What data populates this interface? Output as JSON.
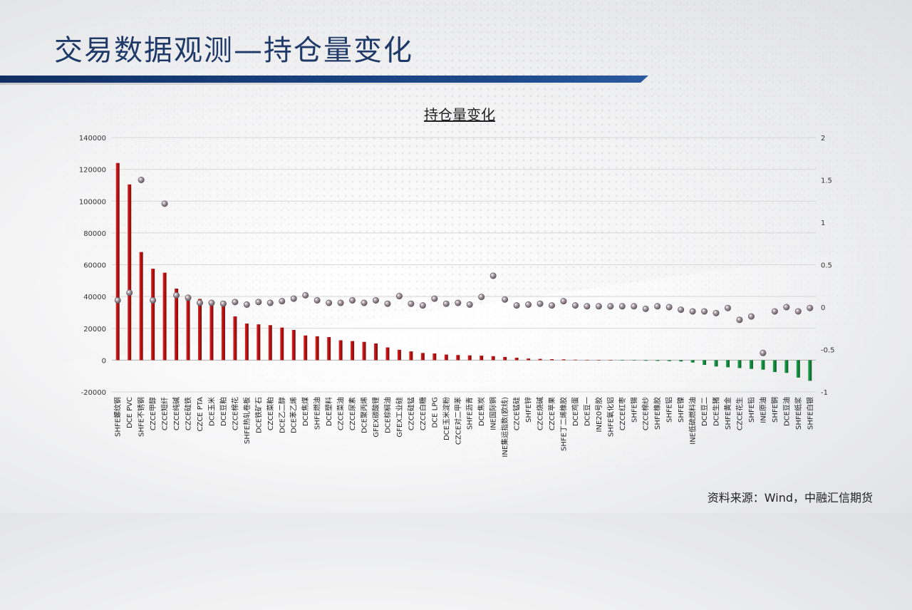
{
  "page": {
    "title": "交易数据观测—持仓量变化",
    "source": "资料来源：Wind，中融汇信期货"
  },
  "colors": {
    "title": "#1f3a68",
    "title_bar": "#1e4b8d",
    "positive_bar": "#c41414",
    "negative_bar": "#138a3a",
    "dot": "#8b7f86"
  },
  "chart_data": {
    "type": "bar",
    "title": "持仓量变化",
    "categories": [
      "SHFE螺纹钢",
      "DCE PVC",
      "SHFE不锈钢",
      "CZCE甲醇",
      "CZCE短纤",
      "CZCE纯碱",
      "CZCE硅铁",
      "CZCE PTA",
      "DCE玉米",
      "DCE豆粕",
      "CZCE棉花",
      "SHFE热轧卷板",
      "DCE铁矿石",
      "CZCE菜粕",
      "DCE乙二醇",
      "DCE苯乙烯",
      "DCE焦煤",
      "SHFE燃油",
      "DCE塑料",
      "CZCE菜油",
      "CZCE尿素",
      "DCE聚丙烯",
      "GFEX碳酸锂",
      "DCE棕榈油",
      "GFEX工业硅",
      "CZCE硅锰",
      "CZCE白糖",
      "DCE LPG",
      "DCE玉米淀粉",
      "CZCE对二甲苯",
      "SHFE沥青",
      "DCE焦炭",
      "INE国际铜",
      "INE集运指数(欧线)",
      "CZCE锰硅",
      "SHFE锌",
      "CZCE烧碱",
      "CZCE苹果",
      "SHFE丁二烯橡胶",
      "DCE鸡蛋",
      "DCE豆一",
      "INE20号胶",
      "SHFE氧化铝",
      "CZCE红枣",
      "SHFE锡",
      "CZCE棉纱",
      "SHFE橡胶",
      "SHFE铝",
      "SHFE镍",
      "INE低硫燃料油",
      "DCE豆二",
      "DCE生猪",
      "SHFE黄金",
      "CZCE花生",
      "SHFE铅",
      "INE原油",
      "SHFE铜",
      "DCE豆油",
      "SHFE纸浆",
      "SHFE白银"
    ],
    "series": [
      {
        "axis": "left",
        "values": [
          124000,
          110500,
          68000,
          57500,
          55000,
          45000,
          40000,
          38500,
          37000,
          35000,
          27500,
          23000,
          22500,
          22000,
          20500,
          19000,
          15500,
          15000,
          14500,
          12500,
          12000,
          11500,
          10500,
          8000,
          6500,
          5500,
          4500,
          4200,
          3500,
          3200,
          3000,
          2800,
          2500,
          2000,
          1500,
          1000,
          800,
          600,
          500,
          300,
          200,
          100,
          50,
          -200,
          -300,
          -400,
          -500,
          -600,
          -800,
          -1500,
          -3000,
          -4000,
          -4500,
          -5000,
          -5500,
          -6000,
          -7500,
          -8000,
          -11000,
          -13000
        ]
      },
      {
        "axis": "right",
        "values": [
          0.08,
          0.17,
          1.5,
          0.08,
          1.22,
          0.14,
          0.11,
          0.05,
          0.05,
          0.04,
          0.06,
          0.03,
          0.06,
          0.05,
          0.07,
          0.1,
          0.14,
          0.08,
          0.05,
          0.05,
          0.08,
          0.05,
          0.08,
          0.04,
          0.13,
          0.04,
          0.02,
          0.1,
          0.04,
          0.05,
          0.03,
          0.12,
          0.37,
          0.09,
          0.02,
          0.03,
          0.04,
          0.02,
          0.07,
          0.02,
          0.01,
          0.01,
          0.01,
          0.01,
          0.01,
          -0.02,
          0.01,
          0.0,
          -0.03,
          -0.05,
          -0.05,
          -0.07,
          -0.01,
          -0.15,
          -0.11,
          -0.54,
          -0.05,
          0.0,
          -0.05,
          -0.01
        ]
      }
    ],
    "y_left_ticks": [
      "140000",
      "120000",
      "100000",
      "80000",
      "60000",
      "40000",
      "20000",
      "0",
      "-20000"
    ],
    "y_right_ticks": [
      "2",
      "1.5",
      "1",
      "0.5",
      "0",
      "-0.5",
      "-1"
    ],
    "y_left_range": [
      -20000,
      140000
    ],
    "y_right_range": [
      -1,
      2
    ],
    "grid": true,
    "legend": "none"
  }
}
